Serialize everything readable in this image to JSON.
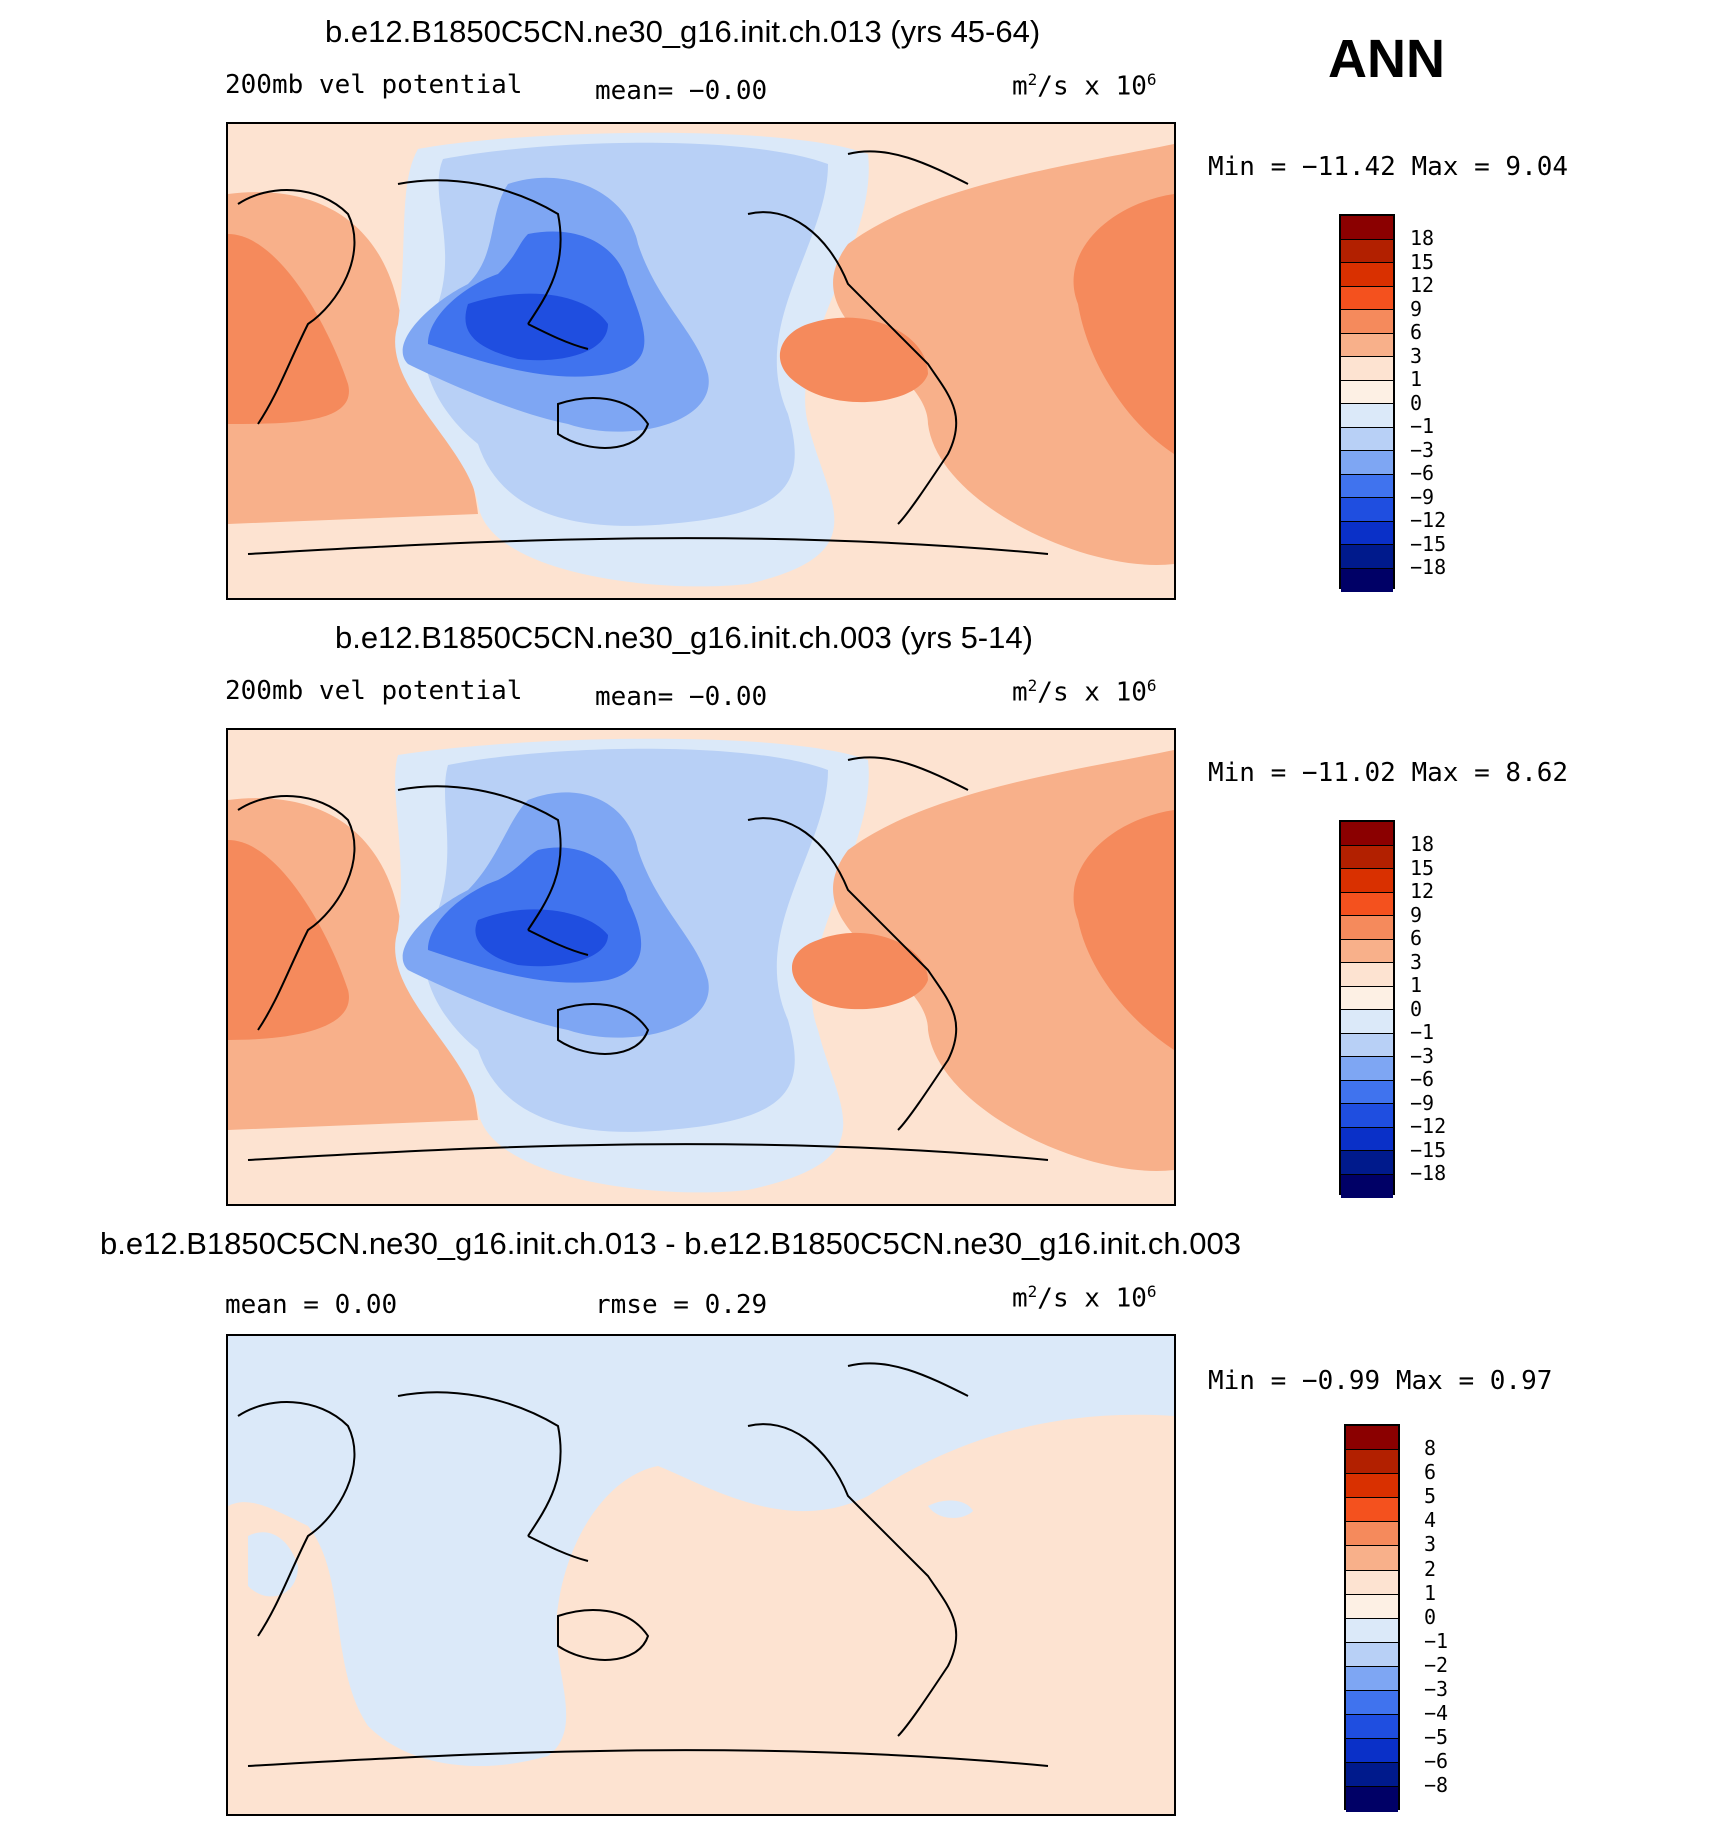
{
  "season": "ANN",
  "colors": {
    "scale_12": [
      "#8b0000",
      "#b22000",
      "#d93000",
      "#f4511e",
      "#f58a5c",
      "#f8b08a",
      "#fde3d1",
      "#dbe9f9",
      "#b8d0f6",
      "#7ea6f3",
      "#4073ee",
      "#1f4ee0",
      "#0a30c8",
      "#001a8c"
    ],
    "land_line": "#000000"
  },
  "panels": [
    {
      "title": "b.e12.B1850C5CN.ne30_g16.init.ch.013 (yrs 45-64)",
      "left_label": "200mb vel potential",
      "mid_label": "mean=  −0.00",
      "units": "m²/s x 10⁶",
      "minmax": "Min = −11.42 Max =   9.04",
      "levels": [
        "18",
        "15",
        "12",
        "9",
        "6",
        "3",
        "1",
        "0",
        "−1",
        "−3",
        "−6",
        "−9",
        "−12",
        "−15",
        "−18"
      ]
    },
    {
      "title": "b.e12.B1850C5CN.ne30_g16.init.ch.003 (yrs 5-14)",
      "left_label": "200mb vel potential",
      "mid_label": "mean=  −0.00",
      "units": "m²/s x 10⁶",
      "minmax": "Min = −11.02 Max =   8.62",
      "levels": [
        "18",
        "15",
        "12",
        "9",
        "6",
        "3",
        "1",
        "0",
        "−1",
        "−3",
        "−6",
        "−9",
        "−12",
        "−15",
        "−18"
      ]
    },
    {
      "title": "b.e12.B1850C5CN.ne30_g16.init.ch.013 - b.e12.B1850C5CN.ne30_g16.init.ch.003",
      "left_label": "mean =    0.00",
      "mid_label": "rmse =    0.29",
      "units": "m²/s x 10⁶",
      "minmax": "Min =   −0.99 Max =   0.97",
      "levels": [
        "8",
        "6",
        "5",
        "4",
        "3",
        "2",
        "1",
        "0",
        "−1",
        "−2",
        "−3",
        "−4",
        "−5",
        "−6",
        "−8"
      ]
    }
  ]
}
